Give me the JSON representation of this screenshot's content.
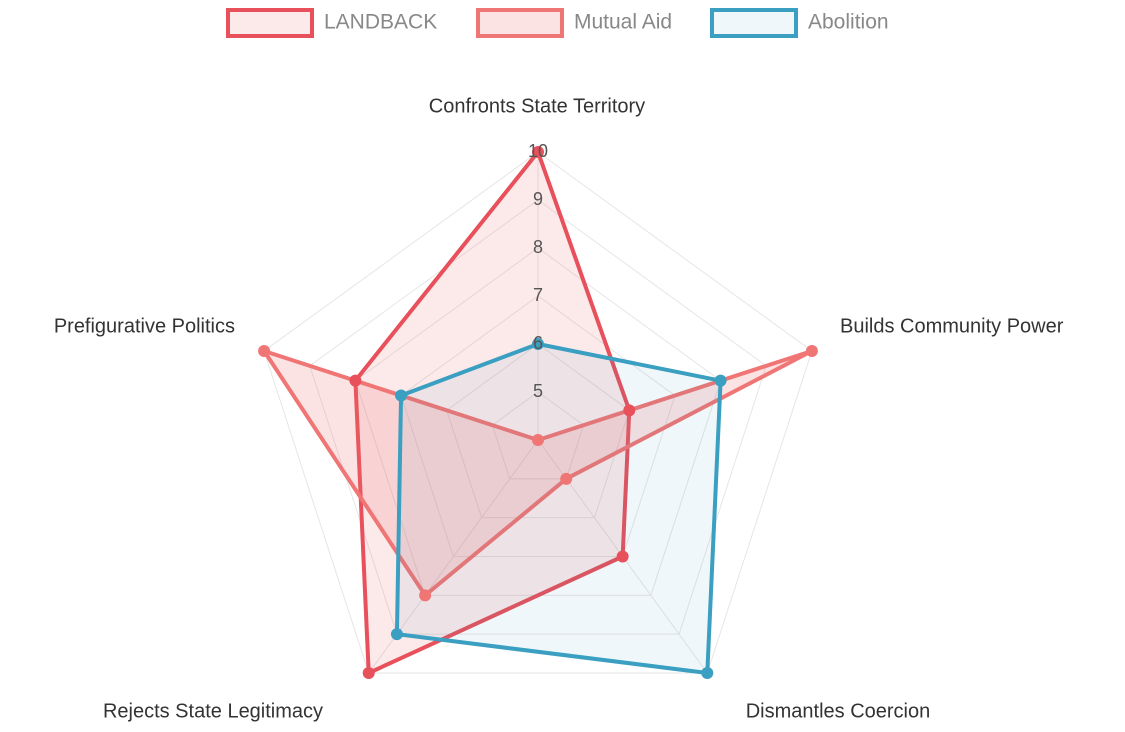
{
  "chart_data": {
    "type": "radar",
    "categories": [
      "Confronts State Territory",
      "Builds Community Power",
      "Dismantles Coercion",
      "Rejects State Legitimacy",
      "Prefigurative Politics"
    ],
    "series": [
      {
        "name": "LANDBACK",
        "color": "#e8505b",
        "fill": "rgba(232,80,91,0.12)",
        "values": [
          10,
          6,
          7,
          10,
          8
        ]
      },
      {
        "name": "Mutual Aid",
        "color": "#f07575",
        "fill": "rgba(240,117,117,0.2)",
        "values": [
          4,
          10,
          5,
          8,
          10
        ]
      },
      {
        "name": "Abolition",
        "color": "#3a9fc0",
        "fill": "rgba(58,159,192,0.08)",
        "values": [
          6,
          8,
          10,
          9,
          7
        ]
      }
    ],
    "rlim": [
      4,
      10
    ],
    "rticks": [
      5,
      6,
      7,
      8,
      9,
      10
    ],
    "grid": true,
    "legend": "top"
  }
}
